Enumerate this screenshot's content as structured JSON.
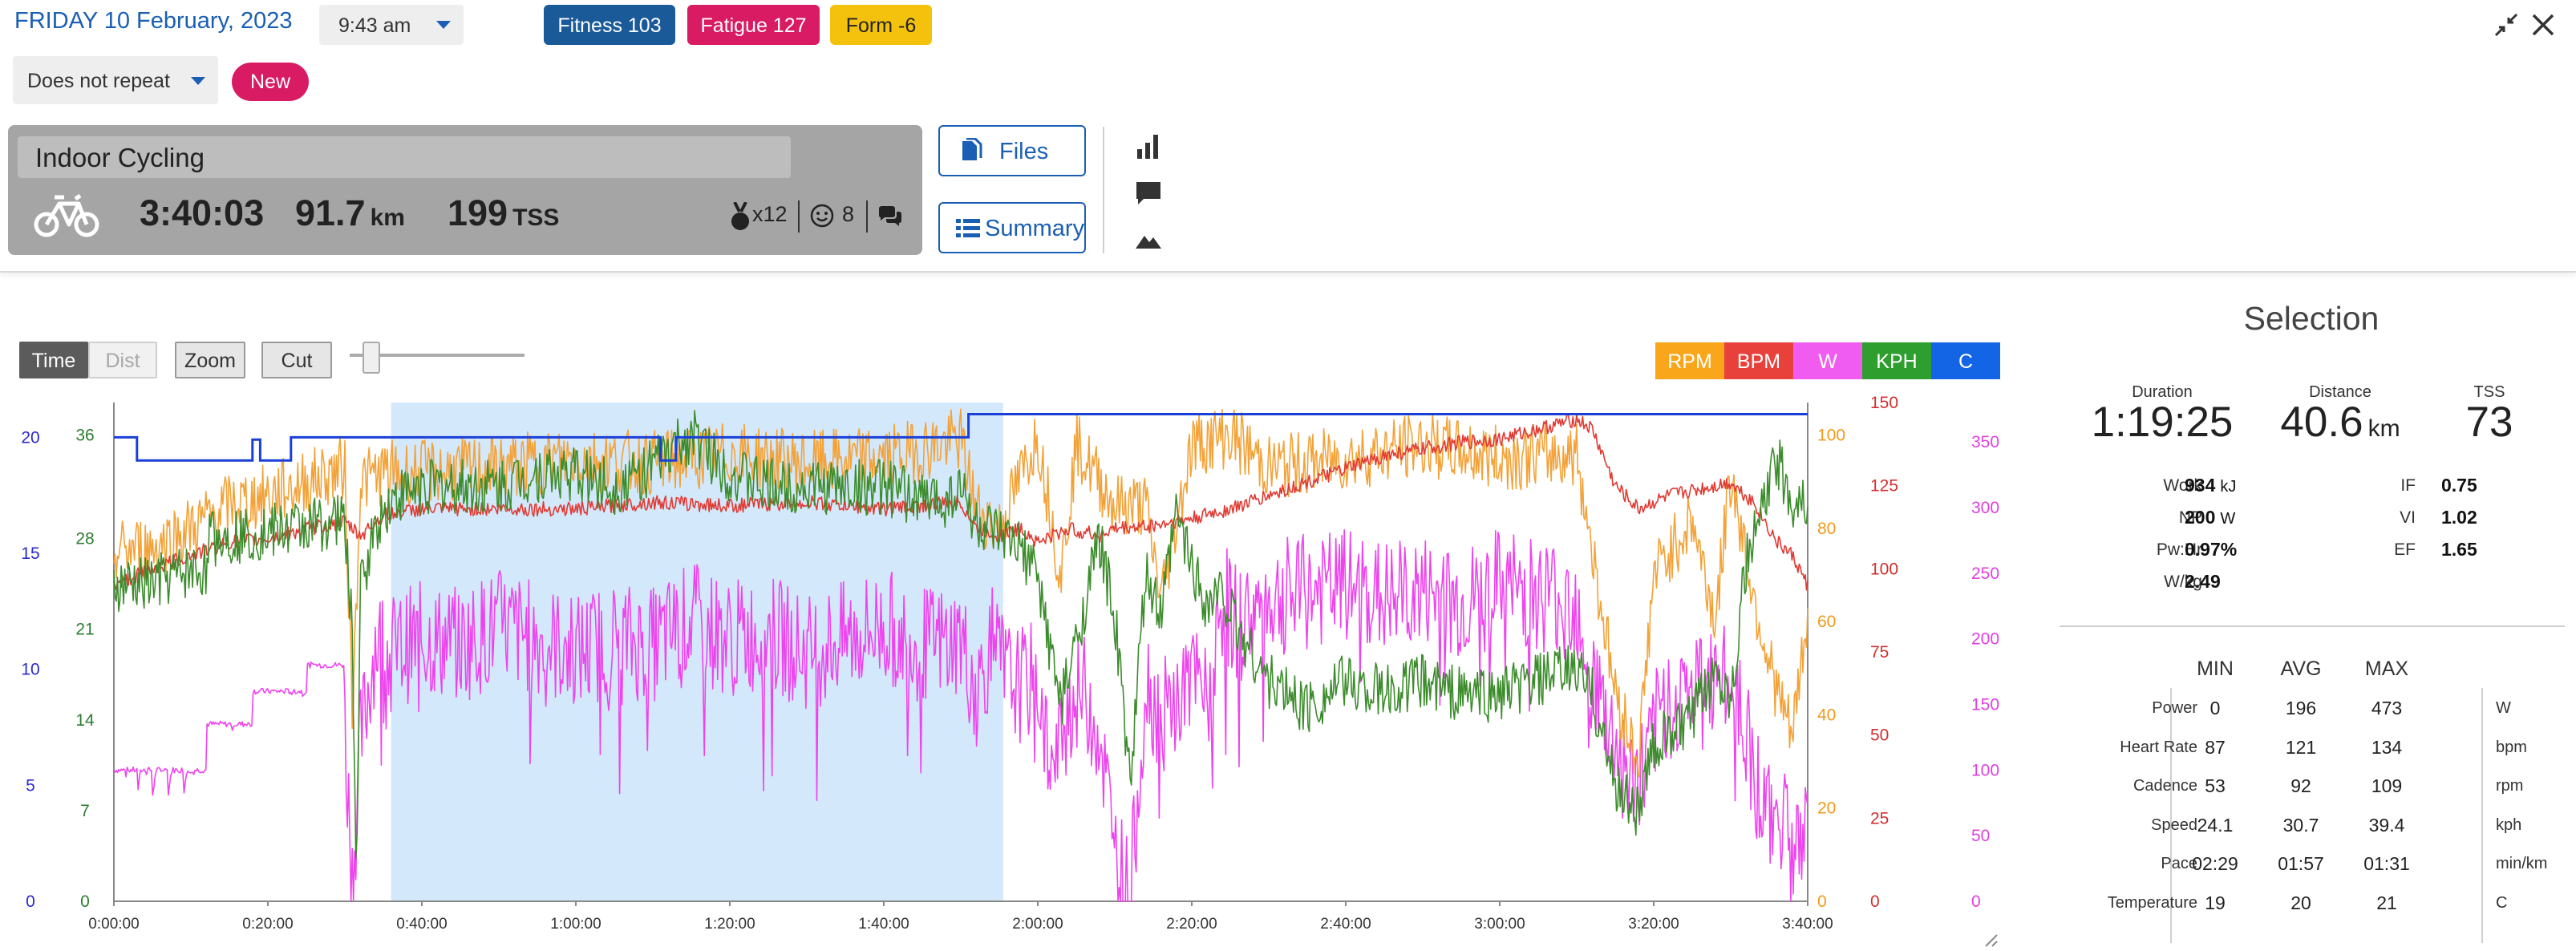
{
  "header": {
    "date_title": "FRIDAY 10 February, 2023",
    "time_value": "9:43 am",
    "fitness_label": "Fitness 103",
    "fatigue_label": "Fatigue 127",
    "form_label": "Form -6",
    "repeat_value": "Does not repeat",
    "new_label": "New"
  },
  "activity": {
    "name": "Indoor Cycling",
    "duration": "3:40:03",
    "distance": "91.7",
    "distance_unit": "km",
    "tss": "199",
    "tss_unit": "TSS",
    "medals": "x12",
    "feel": "8",
    "icons": [
      "bike-icon",
      "medal-icon",
      "smiley-icon",
      "comments-icon"
    ]
  },
  "side_buttons": {
    "files_label": "Files",
    "summary_label": "Summary",
    "icons": [
      "file-icon",
      "list-icon",
      "bar-chart-icon",
      "comment-icon",
      "mountain-icon"
    ]
  },
  "chart_toolbar": {
    "time_label": "Time",
    "dist_label": "Dist",
    "zoom_label": "Zoom",
    "cut_label": "Cut"
  },
  "legend": [
    {
      "label": "RPM",
      "color": "#f9a61a"
    },
    {
      "label": "BPM",
      "color": "#e8403a"
    },
    {
      "label": "W",
      "color": "#f05cf0"
    },
    {
      "label": "KPH",
      "color": "#2e9e2e"
    },
    {
      "label": "C",
      "color": "#1464e6"
    }
  ],
  "chart_data": {
    "type": "line",
    "x_ticks": [
      "0:00:00",
      "0:20:00",
      "0:40:00",
      "1:00:00",
      "1:20:00",
      "1:40:00",
      "2:00:00",
      "2:20:00",
      "2:40:00",
      "3:00:00",
      "3:20:00",
      "3:40:00"
    ],
    "x_range_minutes": [
      0,
      220
    ],
    "selection_minutes": [
      36,
      115.5
    ],
    "axes": {
      "temp_c": {
        "ticks": [
          "0",
          "5",
          "10",
          "15",
          "20"
        ],
        "range": [
          0,
          21.5
        ],
        "color": "#2a2acf"
      },
      "speed_kph": {
        "ticks": [
          "0",
          "7",
          "14",
          "21",
          "28",
          "36"
        ],
        "range": [
          0,
          38.5
        ],
        "color": "#2e7d32"
      },
      "cadence_rpm": {
        "ticks": [
          "0",
          "20",
          "40",
          "60",
          "80",
          "100"
        ],
        "range": [
          0,
          107
        ],
        "color": "#f29a1a"
      },
      "heart_rate_bpm": {
        "ticks": [
          "0",
          "25",
          "50",
          "75",
          "100",
          "125",
          "150"
        ],
        "range": [
          0,
          150
        ],
        "color": "#d32f2f"
      },
      "power_w": {
        "ticks": [
          "0",
          "50",
          "100",
          "150",
          "200",
          "250",
          "300",
          "350"
        ],
        "range": [
          0,
          380
        ],
        "color": "#e040e0"
      }
    },
    "series": [
      {
        "name": "C",
        "key": "temp",
        "color": "#1a3fd6",
        "points": [
          [
            0,
            20
          ],
          [
            3,
            20
          ],
          [
            3,
            19
          ],
          [
            18,
            19
          ],
          [
            18,
            19.9
          ],
          [
            19,
            19.9
          ],
          [
            19,
            19
          ],
          [
            23,
            19
          ],
          [
            23,
            20
          ],
          [
            71,
            20
          ],
          [
            71,
            19
          ],
          [
            73,
            19
          ],
          [
            73,
            20
          ],
          [
            111,
            20
          ],
          [
            111,
            21
          ],
          [
            220,
            21
          ]
        ]
      },
      {
        "name": "KPH",
        "key": "speed",
        "color": "#3c8c2c",
        "points": [
          [
            0,
            24
          ],
          [
            5,
            24.5
          ],
          [
            10,
            25.5
          ],
          [
            12,
            25.5
          ],
          [
            12,
            28
          ],
          [
            20,
            28.5
          ],
          [
            25,
            29
          ],
          [
            30,
            29.5
          ],
          [
            31,
            20
          ],
          [
            31.5,
            0.5
          ],
          [
            32,
            24
          ],
          [
            34,
            29
          ],
          [
            36,
            31
          ],
          [
            40,
            32
          ],
          [
            45,
            32
          ],
          [
            50,
            32
          ],
          [
            55,
            33
          ],
          [
            60,
            33
          ],
          [
            65,
            32
          ],
          [
            70,
            33.5
          ],
          [
            75,
            36
          ],
          [
            80,
            33
          ],
          [
            85,
            32
          ],
          [
            90,
            32
          ],
          [
            95,
            32
          ],
          [
            100,
            32
          ],
          [
            105,
            31
          ],
          [
            108,
            31
          ],
          [
            110,
            32
          ],
          [
            112,
            29
          ],
          [
            115,
            28
          ],
          [
            118,
            27
          ],
          [
            120,
            25
          ],
          [
            123,
            15
          ],
          [
            125,
            20
          ],
          [
            128,
            28
          ],
          [
            130,
            22
          ],
          [
            132,
            9
          ],
          [
            134,
            25
          ],
          [
            136,
            22
          ],
          [
            138,
            30
          ],
          [
            140,
            26
          ],
          [
            142,
            23
          ],
          [
            144,
            24
          ],
          [
            146,
            21
          ],
          [
            150,
            17
          ],
          [
            155,
            15
          ],
          [
            160,
            17
          ],
          [
            165,
            16
          ],
          [
            170,
            17
          ],
          [
            175,
            16
          ],
          [
            180,
            16
          ],
          [
            185,
            17
          ],
          [
            190,
            18
          ],
          [
            192,
            16
          ],
          [
            195,
            9
          ],
          [
            198,
            7
          ],
          [
            200,
            12
          ],
          [
            205,
            14
          ],
          [
            208,
            18
          ],
          [
            210,
            16
          ],
          [
            212,
            26
          ],
          [
            214,
            30
          ],
          [
            216,
            34
          ],
          [
            218,
            31
          ],
          [
            220,
            31
          ]
        ]
      },
      {
        "name": "RPM",
        "key": "cadence",
        "color": "#f3a238",
        "points": [
          [
            0,
            75
          ],
          [
            5,
            76
          ],
          [
            10,
            80
          ],
          [
            15,
            85
          ],
          [
            20,
            87
          ],
          [
            25,
            90
          ],
          [
            30,
            93
          ],
          [
            31,
            40
          ],
          [
            32,
            90
          ],
          [
            35,
            92
          ],
          [
            40,
            92
          ],
          [
            50,
            93
          ],
          [
            60,
            95
          ],
          [
            70,
            94
          ],
          [
            80,
            96
          ],
          [
            90,
            94
          ],
          [
            100,
            95
          ],
          [
            110,
            99
          ],
          [
            112,
            84
          ],
          [
            115,
            80
          ],
          [
            120,
            100
          ],
          [
            123,
            70
          ],
          [
            125,
            98
          ],
          [
            130,
            85
          ],
          [
            134,
            85
          ],
          [
            136,
            65
          ],
          [
            140,
            98
          ],
          [
            145,
            100
          ],
          [
            150,
            93
          ],
          [
            160,
            95
          ],
          [
            170,
            98
          ],
          [
            180,
            95
          ],
          [
            190,
            96
          ],
          [
            195,
            45
          ],
          [
            198,
            30
          ],
          [
            200,
            70
          ],
          [
            205,
            82
          ],
          [
            208,
            60
          ],
          [
            210,
            92
          ],
          [
            213,
            65
          ],
          [
            216,
            45
          ],
          [
            218,
            35
          ],
          [
            220,
            62
          ]
        ]
      },
      {
        "name": "BPM",
        "key": "heart_rate",
        "color": "#e13a33",
        "points": [
          [
            0,
            95
          ],
          [
            5,
            100
          ],
          [
            10,
            104
          ],
          [
            15,
            108
          ],
          [
            20,
            109
          ],
          [
            25,
            112
          ],
          [
            30,
            114
          ],
          [
            32,
            110
          ],
          [
            35,
            116
          ],
          [
            40,
            118
          ],
          [
            50,
            118
          ],
          [
            60,
            118
          ],
          [
            70,
            120
          ],
          [
            80,
            119
          ],
          [
            90,
            120
          ],
          [
            100,
            118
          ],
          [
            110,
            120
          ],
          [
            112,
            112
          ],
          [
            115,
            110
          ],
          [
            118,
            112
          ],
          [
            120,
            108
          ],
          [
            124,
            112
          ],
          [
            128,
            110
          ],
          [
            130,
            112
          ],
          [
            135,
            113
          ],
          [
            140,
            115
          ],
          [
            145,
            118
          ],
          [
            150,
            122
          ],
          [
            155,
            126
          ],
          [
            160,
            130
          ],
          [
            165,
            134
          ],
          [
            170,
            136
          ],
          [
            175,
            138
          ],
          [
            180,
            139
          ],
          [
            185,
            142
          ],
          [
            190,
            145
          ],
          [
            192,
            142
          ],
          [
            195,
            125
          ],
          [
            198,
            118
          ],
          [
            202,
            122
          ],
          [
            206,
            124
          ],
          [
            210,
            126
          ],
          [
            213,
            120
          ],
          [
            216,
            108
          ],
          [
            218,
            104
          ],
          [
            220,
            95
          ]
        ]
      },
      {
        "name": "W",
        "key": "power",
        "color": "#ee44ee",
        "points": [
          [
            0,
            100
          ],
          [
            3,
            100
          ],
          [
            3,
            80
          ],
          [
            3.5,
            100
          ],
          [
            5,
            100
          ],
          [
            5,
            80
          ],
          [
            5.5,
            100
          ],
          [
            7,
            100
          ],
          [
            7,
            80
          ],
          [
            7.5,
            100
          ],
          [
            9,
            100
          ],
          [
            9,
            80
          ],
          [
            9.5,
            100
          ],
          [
            11,
            100
          ],
          [
            11,
            100
          ],
          [
            12,
            100
          ],
          [
            12,
            135
          ],
          [
            18,
            135
          ],
          [
            18,
            160
          ],
          [
            25,
            160
          ],
          [
            25,
            180
          ],
          [
            30,
            180
          ],
          [
            30,
            130
          ],
          [
            31,
            15
          ],
          [
            32,
            120
          ],
          [
            34,
            200
          ],
          [
            36,
            190
          ],
          [
            40,
            200
          ],
          [
            45,
            195
          ],
          [
            50,
            210
          ],
          [
            55,
            200
          ],
          [
            60,
            190
          ],
          [
            65,
            200
          ],
          [
            70,
            195
          ],
          [
            75,
            215
          ],
          [
            80,
            200
          ],
          [
            85,
            205
          ],
          [
            90,
            190
          ],
          [
            95,
            200
          ],
          [
            100,
            210
          ],
          [
            105,
            195
          ],
          [
            110,
            200
          ],
          [
            112,
            160
          ],
          [
            114,
            195
          ],
          [
            116,
            170
          ],
          [
            118,
            165
          ],
          [
            120,
            170
          ],
          [
            122,
            90
          ],
          [
            124,
            150
          ],
          [
            126,
            160
          ],
          [
            128,
            130
          ],
          [
            130,
            40
          ],
          [
            132,
            0
          ],
          [
            134,
            170
          ],
          [
            136,
            140
          ],
          [
            138,
            150
          ],
          [
            140,
            170
          ],
          [
            142,
            150
          ],
          [
            144,
            230
          ],
          [
            146,
            210
          ],
          [
            150,
            230
          ],
          [
            155,
            235
          ],
          [
            160,
            240
          ],
          [
            165,
            230
          ],
          [
            170,
            235
          ],
          [
            175,
            225
          ],
          [
            180,
            240
          ],
          [
            185,
            235
          ],
          [
            190,
            230
          ],
          [
            192,
            170
          ],
          [
            195,
            120
          ],
          [
            197,
            90
          ],
          [
            199,
            100
          ],
          [
            201,
            150
          ],
          [
            205,
            160
          ],
          [
            208,
            170
          ],
          [
            211,
            160
          ],
          [
            213,
            100
          ],
          [
            215,
            60
          ],
          [
            217,
            70
          ],
          [
            219,
            40
          ],
          [
            220,
            50
          ]
        ]
      }
    ]
  },
  "selection": {
    "title": "Selection",
    "duration_label": "Duration",
    "duration_value": "1:19:25",
    "distance_label": "Distance",
    "distance_value": "40.6",
    "distance_unit": "km",
    "tss_label": "TSS",
    "tss_value": "73",
    "work_label": "Work",
    "work_value": "934",
    "work_unit": "kJ",
    "np_label": "NP",
    "np_value": "200",
    "np_unit": "W",
    "pwhr_label": "Pw:Hr",
    "pwhr_value": "0.97%",
    "wkg_label": "W/kg",
    "wkg_value": "2.49",
    "if_label": "IF",
    "if_value": "0.75",
    "vi_label": "VI",
    "vi_value": "1.02",
    "ef_label": "EF",
    "ef_value": "1.65",
    "table_headers": [
      "MIN",
      "AVG",
      "MAX"
    ],
    "rows": [
      {
        "label": "Power",
        "min": "0",
        "avg": "196",
        "max": "473",
        "unit": "W"
      },
      {
        "label": "Heart Rate",
        "min": "87",
        "avg": "121",
        "max": "134",
        "unit": "bpm"
      },
      {
        "label": "Cadence",
        "min": "53",
        "avg": "92",
        "max": "109",
        "unit": "rpm"
      },
      {
        "label": "Speed",
        "min": "24.1",
        "avg": "30.7",
        "max": "39.4",
        "unit": "kph"
      },
      {
        "label": "Pace",
        "min": "02:29",
        "avg": "01:57",
        "max": "01:31",
        "unit": "min/km"
      },
      {
        "label": "Temperature",
        "min": "19",
        "avg": "20",
        "max": "21",
        "unit": "C"
      }
    ]
  }
}
